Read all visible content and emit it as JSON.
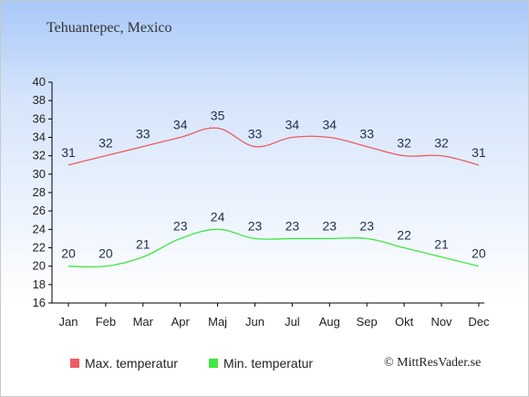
{
  "page": {
    "title": "Tehuantepec, Mexico",
    "copyright": "© MittResVader.se"
  },
  "chart_data": {
    "type": "line",
    "categories": [
      "Jan",
      "Feb",
      "Mar",
      "Apr",
      "Maj",
      "Jun",
      "Jul",
      "Aug",
      "Sep",
      "Okt",
      "Nov",
      "Dec"
    ],
    "ylim": [
      16,
      40
    ],
    "yticks": [
      16,
      18,
      20,
      22,
      24,
      26,
      28,
      30,
      32,
      34,
      36,
      38,
      40
    ],
    "grid": false,
    "legend_position": "bottom",
    "series": [
      {
        "name": "Max. temperatur",
        "color": "#ef5a5f",
        "values": [
          31,
          32,
          33,
          34,
          35,
          33,
          34,
          34,
          33,
          32,
          32,
          31
        ]
      },
      {
        "name": "Min. temperatur",
        "color": "#3ee83e",
        "values": [
          20,
          20,
          21,
          23,
          24,
          23,
          23,
          23,
          23,
          22,
          21,
          20
        ]
      }
    ]
  }
}
